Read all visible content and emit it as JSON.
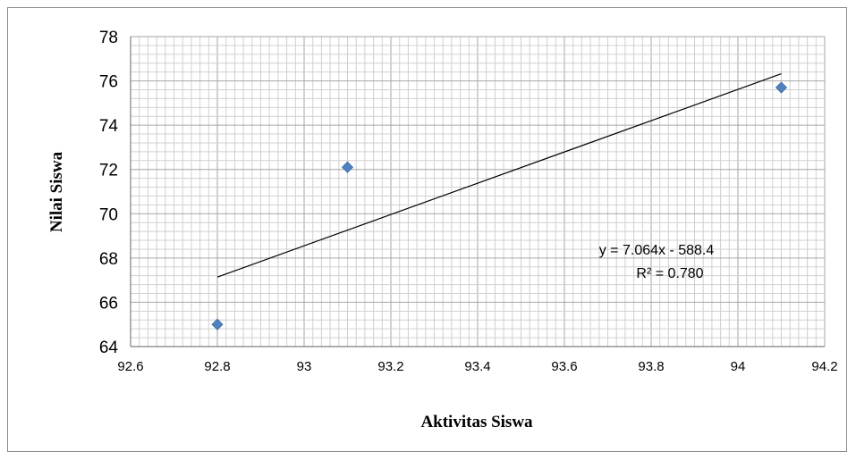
{
  "chart_data": {
    "type": "scatter",
    "title": "",
    "xlabel": "Aktivitas Siswa",
    "ylabel": "Nilai Siswa",
    "xlim": [
      92.6,
      94.2
    ],
    "ylim": [
      64,
      78
    ],
    "x_ticks": [
      "92.6",
      "92.8",
      "93",
      "93.2",
      "93.4",
      "93.6",
      "93.8",
      "94",
      "94.2"
    ],
    "y_ticks": [
      "64",
      "66",
      "68",
      "70",
      "72",
      "74",
      "76",
      "78"
    ],
    "grid": true,
    "legend": "none",
    "series": [
      {
        "points": [
          {
            "x": 92.8,
            "y": 65.0
          },
          {
            "x": 93.1,
            "y": 72.1
          },
          {
            "x": 94.1,
            "y": 75.7
          }
        ],
        "marker": "diamond",
        "color": "#4f81bd"
      }
    ],
    "trendline": {
      "type": "linear",
      "slope": 7.064,
      "intercept": -588.4,
      "x_range": [
        92.8,
        94.1
      ],
      "color": "#000000",
      "equation_label": "y = 7.064x - 588.4",
      "r2_label": "R² = 0.780"
    }
  }
}
